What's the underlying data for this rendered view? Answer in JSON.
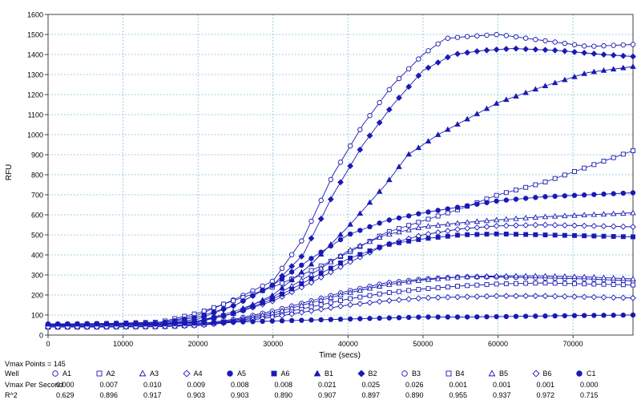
{
  "chart_data": {
    "type": "scatter",
    "title": "",
    "xlabel": "Time (secs)",
    "ylabel": "RFU",
    "xlim": [
      0,
      78000
    ],
    "ylim": [
      0,
      1600
    ],
    "x_ticks": [
      "0",
      "10000",
      "20000",
      "30000",
      "40000",
      "50000",
      "60000",
      "70000"
    ],
    "y_ticks": [
      "0",
      "100",
      "200",
      "300",
      "400",
      "500",
      "600",
      "700",
      "800",
      "900",
      "1000",
      "1100",
      "1200",
      "1300",
      "1400",
      "1500",
      "1600"
    ],
    "grid": true,
    "color": "#1a1ab4",
    "grid_color": "#7fc1dc",
    "series": [
      {
        "name": "A1",
        "marker": "circle-open",
        "x": [
          0,
          15000,
          20000,
          25000,
          30000,
          34000,
          38000,
          42000,
          46000,
          50000,
          53000,
          56000,
          60000,
          66000,
          72000,
          78000
        ],
        "y": [
          55,
          60,
          100,
          180,
          270,
          480,
          800,
          1050,
          1250,
          1400,
          1480,
          1490,
          1500,
          1470,
          1440,
          1450
        ]
      },
      {
        "name": "A2",
        "marker": "square-open",
        "x": [
          0,
          15000,
          20000,
          25000,
          30000,
          35000,
          40000,
          45000,
          50000,
          55000,
          60000,
          66000,
          72000,
          78000
        ],
        "y": [
          50,
          65,
          110,
          175,
          240,
          320,
          410,
          510,
          570,
          630,
          700,
          760,
          840,
          920
        ]
      },
      {
        "name": "A3",
        "marker": "triangle-open",
        "x": [
          0,
          15000,
          20000,
          25000,
          30000,
          35000,
          40000,
          45000,
          50000,
          55000,
          60000,
          66000,
          72000,
          78000
        ],
        "y": [
          45,
          50,
          70,
          120,
          190,
          300,
          420,
          500,
          540,
          560,
          575,
          590,
          600,
          610
        ]
      },
      {
        "name": "A4",
        "marker": "diamond-open",
        "x": [
          0,
          15000,
          20000,
          25000,
          30000,
          35000,
          40000,
          45000,
          50000,
          55000,
          60000,
          66000,
          72000,
          78000
        ],
        "y": [
          45,
          50,
          65,
          110,
          170,
          260,
          360,
          450,
          500,
          530,
          545,
          550,
          545,
          540
        ]
      },
      {
        "name": "A5",
        "marker": "circle-filled",
        "x": [
          0,
          15000,
          20000,
          25000,
          30000,
          35000,
          40000,
          45000,
          50000,
          55000,
          60000,
          66000,
          72000,
          78000
        ],
        "y": [
          55,
          60,
          90,
          150,
          250,
          380,
          500,
          570,
          610,
          640,
          670,
          690,
          700,
          710
        ]
      },
      {
        "name": "A6",
        "marker": "square-filled",
        "x": [
          0,
          15000,
          20000,
          25000,
          30000,
          35000,
          40000,
          45000,
          50000,
          55000,
          60000,
          66000,
          72000,
          78000
        ],
        "y": [
          50,
          55,
          70,
          110,
          180,
          280,
          380,
          450,
          480,
          500,
          505,
          500,
          495,
          490
        ]
      },
      {
        "name": "B1",
        "marker": "triangle-filled",
        "x": [
          0,
          15000,
          20000,
          25000,
          30000,
          35000,
          40000,
          45000,
          48000,
          52000,
          56000,
          60000,
          66000,
          72000,
          78000
        ],
        "y": [
          50,
          55,
          70,
          110,
          200,
          350,
          540,
          750,
          900,
          1000,
          1080,
          1160,
          1240,
          1310,
          1340
        ]
      },
      {
        "name": "B2",
        "marker": "diamond-filled",
        "x": [
          0,
          15000,
          20000,
          25000,
          30000,
          34000,
          38000,
          42000,
          46000,
          50000,
          54000,
          58000,
          62000,
          68000,
          74000,
          78000
        ],
        "y": [
          50,
          55,
          80,
          150,
          250,
          400,
          700,
          950,
          1150,
          1320,
          1400,
          1420,
          1430,
          1420,
          1400,
          1390
        ]
      },
      {
        "name": "B3",
        "marker": "circle-open",
        "x": [
          0,
          15000,
          20000,
          25000,
          30000,
          35000,
          40000,
          45000,
          50000,
          55000,
          60000,
          66000,
          72000,
          78000
        ],
        "y": [
          40,
          45,
          55,
          80,
          120,
          170,
          220,
          260,
          280,
          290,
          290,
          285,
          280,
          270
        ]
      },
      {
        "name": "B4",
        "marker": "square-open",
        "x": [
          0,
          15000,
          20000,
          25000,
          30000,
          35000,
          40000,
          45000,
          50000,
          55000,
          60000,
          66000,
          72000,
          78000
        ],
        "y": [
          40,
          42,
          50,
          70,
          100,
          140,
          180,
          210,
          230,
          245,
          255,
          260,
          255,
          250
        ]
      },
      {
        "name": "B5",
        "marker": "triangle-open",
        "x": [
          0,
          15000,
          20000,
          25000,
          30000,
          35000,
          40000,
          45000,
          50000,
          55000,
          60000,
          66000,
          72000,
          78000
        ],
        "y": [
          40,
          42,
          50,
          75,
          110,
          160,
          210,
          250,
          275,
          290,
          295,
          295,
          290,
          280
        ]
      },
      {
        "name": "B6",
        "marker": "diamond-open",
        "x": [
          0,
          15000,
          20000,
          25000,
          30000,
          35000,
          40000,
          45000,
          50000,
          55000,
          60000,
          66000,
          72000,
          78000
        ],
        "y": [
          40,
          42,
          48,
          65,
          90,
          120,
          150,
          170,
          185,
          190,
          195,
          195,
          190,
          185
        ]
      },
      {
        "name": "C1",
        "marker": "circle-filled",
        "x": [
          0,
          15000,
          20000,
          25000,
          30000,
          35000,
          40000,
          45000,
          50000,
          55000,
          60000,
          66000,
          72000,
          78000
        ],
        "y": [
          55,
          55,
          60,
          65,
          70,
          75,
          80,
          85,
          90,
          90,
          92,
          95,
          98,
          100
        ]
      }
    ]
  },
  "stats": {
    "vmax_points_label": "Vmax Points = 145",
    "well_label": "Well",
    "vmax_label": "Vmax Per Second",
    "r2_label": "R^2",
    "wells": [
      {
        "name": "A1",
        "marker": "circle-open",
        "vmax": "0.000",
        "r2": "0.629"
      },
      {
        "name": "A2",
        "marker": "square-open",
        "vmax": "0.007",
        "r2": "0.896"
      },
      {
        "name": "A3",
        "marker": "triangle-open",
        "vmax": "0.010",
        "r2": "0.917"
      },
      {
        "name": "A4",
        "marker": "diamond-open",
        "vmax": "0.009",
        "r2": "0.903"
      },
      {
        "name": "A5",
        "marker": "circle-filled",
        "vmax": "0.008",
        "r2": "0.903"
      },
      {
        "name": "A6",
        "marker": "square-filled",
        "vmax": "0.008",
        "r2": "0.890"
      },
      {
        "name": "B1",
        "marker": "triangle-filled",
        "vmax": "0.021",
        "r2": "0.907"
      },
      {
        "name": "B2",
        "marker": "diamond-filled",
        "vmax": "0.025",
        "r2": "0.897"
      },
      {
        "name": "B3",
        "marker": "circle-open",
        "vmax": "0.026",
        "r2": "0.890"
      },
      {
        "name": "B4",
        "marker": "square-open",
        "vmax": "0.001",
        "r2": "0.955"
      },
      {
        "name": "B5",
        "marker": "triangle-open",
        "vmax": "0.001",
        "r2": "0.937"
      },
      {
        "name": "B6",
        "marker": "diamond-open",
        "vmax": "0.001",
        "r2": "0.972"
      },
      {
        "name": "C1",
        "marker": "circle-filled",
        "vmax": "0.000",
        "r2": "0.715"
      }
    ]
  }
}
